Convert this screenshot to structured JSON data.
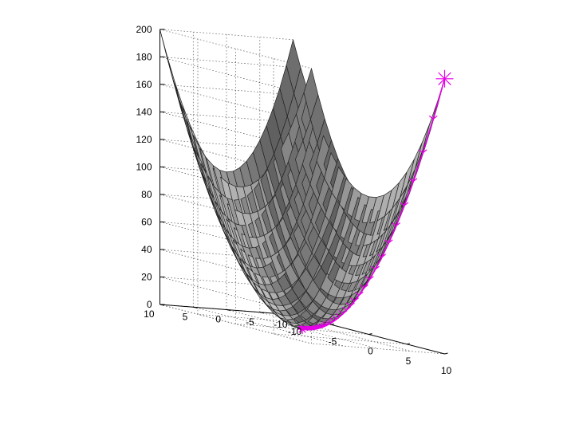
{
  "chart_data": {
    "type": "surface3d",
    "title": "",
    "xlabel": "",
    "ylabel": "",
    "zlabel": "",
    "function": "z = x^2 + y^2",
    "xlim": [
      -10,
      10
    ],
    "ylim": [
      -10,
      10
    ],
    "zlim": [
      0,
      200
    ],
    "grid": true,
    "mesh_step": 1,
    "x_ticks": [
      "-10",
      "-5",
      "0",
      "5",
      "10"
    ],
    "y_ticks": [
      "-10",
      "-5",
      "0",
      "5",
      "10"
    ],
    "z_ticks": [
      "0",
      "20",
      "40",
      "60",
      "80",
      "100",
      "120",
      "140",
      "160",
      "180",
      "200"
    ],
    "surface_color": "#c8c8c8",
    "path_color": "#e600e6",
    "path_start": {
      "x": 10,
      "y": -10,
      "z": 200
    },
    "path_end": {
      "x": 0,
      "y": 0,
      "z": 0
    },
    "path_decay": 0.92,
    "path_steps": 70
  }
}
